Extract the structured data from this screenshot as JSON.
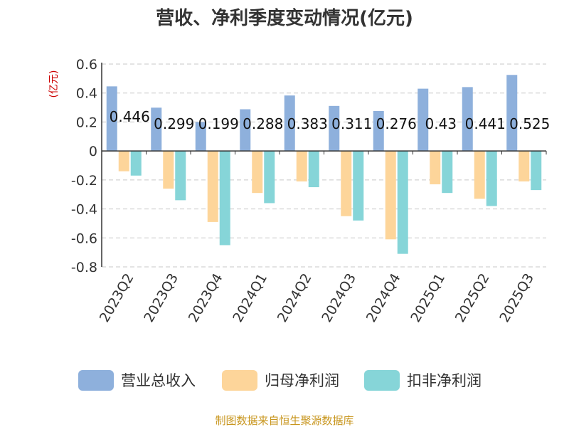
{
  "chart_data": {
    "type": "bar",
    "title": "营收、净利季度变动情况(亿元)",
    "ylabel": "(亿元)",
    "xlabel": "",
    "ylim": [
      -0.8,
      0.6
    ],
    "yticks": [
      0.6,
      0.4,
      0.2,
      0,
      -0.2,
      -0.4,
      -0.6,
      -0.8
    ],
    "grid": true,
    "legend_position": "bottom",
    "categories": [
      "2023Q2",
      "2023Q3",
      "2023Q4",
      "2024Q1",
      "2024Q2",
      "2024Q3",
      "2024Q4",
      "2025Q1",
      "2025Q2",
      "2025Q3"
    ],
    "series": [
      {
        "name": "营业总收入",
        "color": "#8eb0dc",
        "values": [
          0.446,
          0.299,
          0.199,
          0.288,
          0.383,
          0.311,
          0.276,
          0.43,
          0.441,
          0.525
        ],
        "labeled": true
      },
      {
        "name": "归母净利润",
        "color": "#fdd59a",
        "values": [
          -0.14,
          -0.26,
          -0.49,
          -0.29,
          -0.21,
          -0.45,
          -0.61,
          -0.23,
          -0.33,
          -0.21
        ],
        "labeled": false
      },
      {
        "name": "扣非净利润",
        "color": "#86d5d8",
        "values": [
          -0.17,
          -0.34,
          -0.65,
          -0.36,
          -0.25,
          -0.48,
          -0.71,
          -0.29,
          -0.38,
          -0.27
        ],
        "labeled": false
      }
    ],
    "data_labels": [
      "0.446",
      "0.299",
      "0.199",
      "0.288",
      "0.383",
      "0.311",
      "0.276",
      "0.43",
      "0.441",
      "0.525"
    ]
  },
  "source_text": "制图数据来自恒生聚源数据库"
}
